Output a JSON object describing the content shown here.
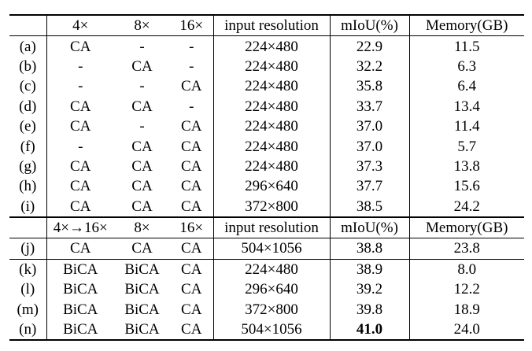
{
  "section1": {
    "headers": [
      "",
      "4×",
      "8×",
      "16×",
      "input resolution",
      "mIoU(%)",
      "Memory(GB)"
    ],
    "rows": [
      [
        "(a)",
        "CA",
        "-",
        "-",
        "224×480",
        "22.9",
        "11.5"
      ],
      [
        "(b)",
        "-",
        "CA",
        "-",
        "224×480",
        "32.2",
        "6.3"
      ],
      [
        "(c)",
        "-",
        "-",
        "CA",
        "224×480",
        "35.8",
        "6.4"
      ],
      [
        "(d)",
        "CA",
        "CA",
        "-",
        "224×480",
        "33.7",
        "13.4"
      ],
      [
        "(e)",
        "CA",
        "-",
        "CA",
        "224×480",
        "37.0",
        "11.4"
      ],
      [
        "(f)",
        "-",
        "CA",
        "CA",
        "224×480",
        "37.0",
        "5.7"
      ],
      [
        "(g)",
        "CA",
        "CA",
        "CA",
        "224×480",
        "37.3",
        "13.8"
      ],
      [
        "(h)",
        "CA",
        "CA",
        "CA",
        "296×640",
        "37.7",
        "15.6"
      ],
      [
        "(i)",
        "CA",
        "CA",
        "CA",
        "372×800",
        "38.5",
        "24.2"
      ]
    ]
  },
  "section2": {
    "headers": [
      "",
      "4×→16×",
      "8×",
      "16×",
      "input resolution",
      "mIoU(%)",
      "Memory(GB)"
    ],
    "rows": [
      [
        "(j)",
        "CA",
        "CA",
        "CA",
        "504×1056",
        "38.8",
        "23.8"
      ],
      [
        "(k)",
        "BiCA",
        "BiCA",
        "CA",
        "224×480",
        "38.9",
        "8.0"
      ],
      [
        "(l)",
        "BiCA",
        "BiCA",
        "CA",
        "296×640",
        "39.2",
        "12.2"
      ],
      [
        "(m)",
        "BiCA",
        "BiCA",
        "CA",
        "372×800",
        "39.8",
        "18.9"
      ],
      [
        "(n)",
        "BiCA",
        "BiCA",
        "CA",
        "504×1056",
        "41.0",
        "24.0"
      ]
    ]
  },
  "bold_cells": [
    [
      "section2",
      4,
      5
    ]
  ]
}
